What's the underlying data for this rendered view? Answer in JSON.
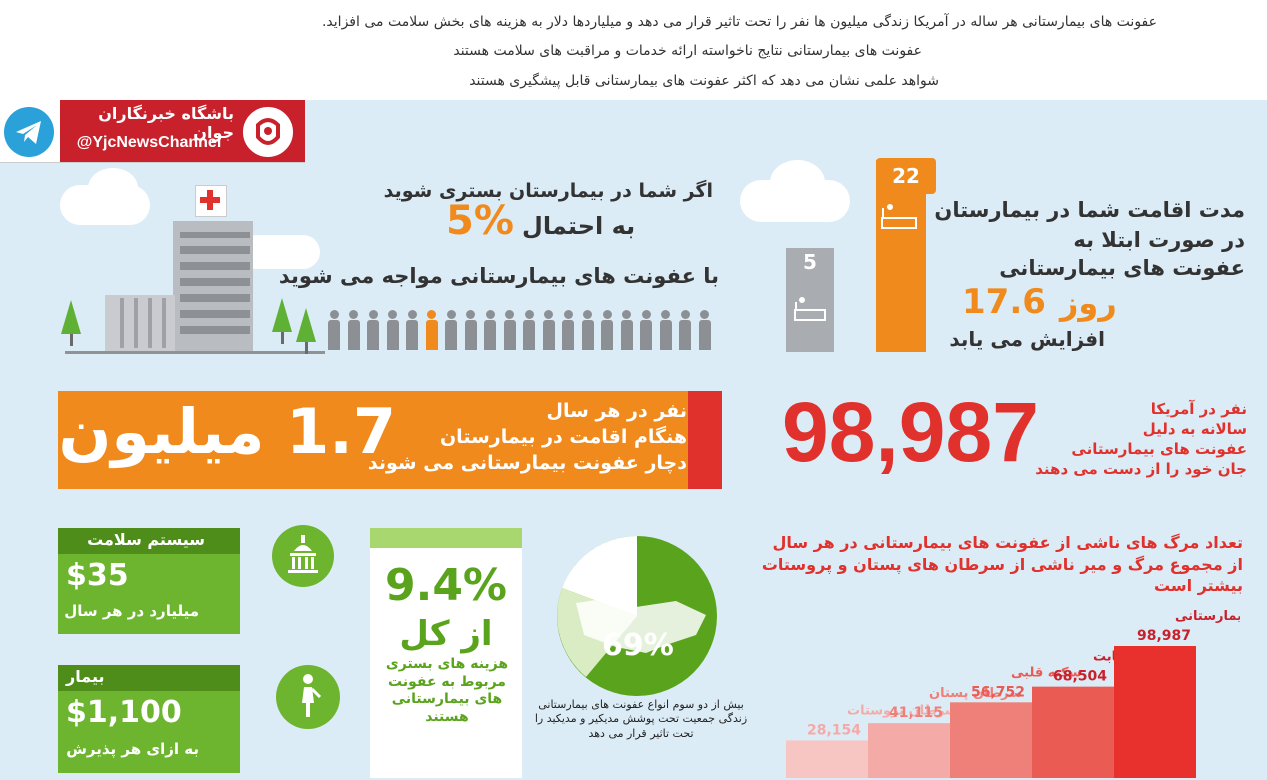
{
  "top": {
    "line1": "عفونت های بیمارستانی هر ساله در آمریکا  زندگی میلیون ها نفر را تحت تاثیر قرار می دهد و میلیاردها دلار به هزینه های بخش سلامت می افزاید.",
    "line2": "عفونت های بیمارستانی نتایج ناخواسته ارائه خدمات و مراقبت های سلامت هستند",
    "line3": "شواهد علمی نشان می دهد که اکثر عفونت های بیمارستانی قابل پیشگیری هستند"
  },
  "branding": {
    "name": "باشگاه خبرنگاران جوان",
    "handle": "@YjcNewsChannel",
    "colors": {
      "red": "#c8212b",
      "telegram": "#2aa1d8"
    }
  },
  "hospital_chance": {
    "line1": "اگر شما در بیمارستان بستری شوید",
    "percent": "5%",
    "line2": "به احتمال",
    "line3": "با عفونت های بیمارستانی مواجه می شوید"
  },
  "stay": {
    "normal_days": "5",
    "infected_days": "22",
    "line1": "مدت اقامت شما در بیمارستان",
    "line2": "در صورت ابتلا به",
    "line3": "عفونت های بیمارستانی",
    "increase_value": "17.6",
    "increase_unit": "روز",
    "line4": "افزایش می یابد"
  },
  "million": {
    "big": "1.7 میلیون",
    "line1": "نفر در هر سال",
    "line2": "هنگام اقامت در بیمارستان",
    "line3": "دچار عفونت بیمارستانی می شوند"
  },
  "deaths": {
    "big": "98,987",
    "line1": "نفر در آمریکا",
    "line2": "سالانه به دلیل",
    "line3": "عفونت های بیمارستانی",
    "line4": "جان خود را از دست می دهند"
  },
  "cost_system": {
    "title": "سیستم سلامت",
    "value": "$35",
    "sub": "میلیارد در هر سال"
  },
  "cost_patient": {
    "title": "بیمار",
    "value": "$1,100",
    "sub": "به ازای هر پذیرش"
  },
  "percent_card": {
    "value": "9.4%",
    "of_total": "از کل",
    "desc": "هزینه های بستری مربوط به عفونت های بیمارستانی هستند"
  },
  "pie": {
    "value": "69%",
    "caption": "بیش از دو سوم انواع عفونت های بیمارستانی زندگی جمعیت تحت پوشش مدیکیر و مدیکید را تحت تاثیر قرار می دهد"
  },
  "chart_heading": {
    "line1": "تعداد مرگ های ناشی از عفونت های بیمارستانی در هر سال",
    "line2": "از مجموع مرگ و میر ناشی از سرطان های پستان و پروستات",
    "line3": "بیشتر است"
  },
  "chart_data": {
    "type": "bar",
    "categories": [
      "سرطان پروستات",
      "سرطان پستان",
      "سکته قلبی",
      "دیابت",
      "عفونت بیمارستانی"
    ],
    "values": [
      28154,
      41115,
      56752,
      68504,
      98987
    ],
    "value_labels": [
      "28,154",
      "41,115",
      "56,752",
      "68,504",
      "98,987"
    ],
    "colors": [
      "#f7c6c3",
      "#f4aaa6",
      "#ef7f79",
      "#ea5b54",
      "#e8312c"
    ]
  }
}
